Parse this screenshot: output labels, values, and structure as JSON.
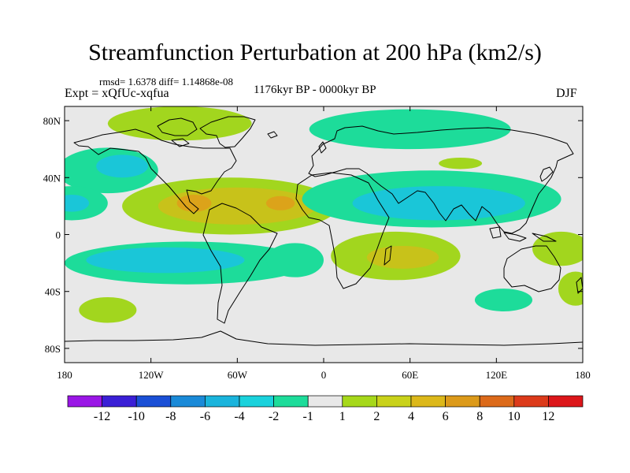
{
  "header": {
    "title": "Streamfunction Perturbation at 200 hPa (km2/s)",
    "stats": "rmsd= 1.6378 diff= 1.14868e-08",
    "experiment": "Expt = xQfUc-xqfua",
    "period": "1176kyr BP - 0000kyr BP",
    "season": "DJF"
  },
  "map": {
    "projection": "cylindrical equidistant",
    "lon_range": [
      -180,
      180
    ],
    "lat_range": [
      -90,
      90
    ],
    "lat_ticks": [
      {
        "value": 80,
        "label": "80N"
      },
      {
        "value": 40,
        "label": "40N"
      },
      {
        "value": 0,
        "label": "0"
      },
      {
        "value": -40,
        "label": "40S"
      },
      {
        "value": -80,
        "label": "80S"
      }
    ],
    "lon_ticks": [
      {
        "value": -180,
        "label": "180"
      },
      {
        "value": -120,
        "label": "120W"
      },
      {
        "value": -60,
        "label": "60W"
      },
      {
        "value": 0,
        "label": "0"
      },
      {
        "value": 60,
        "label": "60E"
      },
      {
        "value": 120,
        "label": "120E"
      },
      {
        "value": 180,
        "label": "180"
      }
    ],
    "field_colors": {
      "background": "#e8e8e8",
      "neg1": "#1ddc9a",
      "neg2": "#1ac6d8",
      "pos1": "#a2d61e",
      "pos2": "#c8c21a",
      "pos3": "#dca31a"
    },
    "anomalies": [
      {
        "name": "greenland-positive",
        "lon": -100,
        "lat": 78,
        "rlon": 50,
        "rlat": 12,
        "level": "pos1"
      },
      {
        "name": "arctic-negative",
        "lon": 60,
        "lat": 74,
        "rlon": 70,
        "rlat": 14,
        "level": "neg1"
      },
      {
        "name": "north-pacific-negative",
        "lon": -150,
        "lat": 45,
        "rlon": 35,
        "rlat": 16,
        "level": "neg1"
      },
      {
        "name": "north-pacific-negative-core",
        "lon": -140,
        "lat": 48,
        "rlon": 18,
        "rlat": 8,
        "level": "neg2"
      },
      {
        "name": "atlantic-positive",
        "lon": -65,
        "lat": 20,
        "rlon": 75,
        "rlat": 20,
        "level": "pos1"
      },
      {
        "name": "atlantic-positive-inner",
        "lon": -60,
        "lat": 20,
        "rlon": 55,
        "rlat": 13,
        "level": "pos2"
      },
      {
        "name": "atlantic-positive-core-west",
        "lon": -90,
        "lat": 22,
        "rlon": 12,
        "rlat": 6,
        "level": "pos3"
      },
      {
        "name": "atlantic-positive-core-east",
        "lon": -30,
        "lat": 22,
        "rlon": 10,
        "rlat": 5,
        "level": "pos3"
      },
      {
        "name": "asian-negative",
        "lon": 75,
        "lat": 25,
        "rlon": 90,
        "rlat": 20,
        "level": "neg1"
      },
      {
        "name": "asian-negative-core",
        "lon": 80,
        "lat": 22,
        "rlon": 60,
        "rlat": 12,
        "level": "neg2"
      },
      {
        "name": "hawaii-negative",
        "lon": -175,
        "lat": 22,
        "rlon": 25,
        "rlat": 12,
        "level": "neg1"
      },
      {
        "name": "hawaii-negative-core",
        "lon": -175,
        "lat": 22,
        "rlon": 12,
        "rlat": 6,
        "level": "neg2"
      },
      {
        "name": "central-asia-positive",
        "lon": 95,
        "lat": 50,
        "rlon": 15,
        "rlat": 4,
        "level": "pos1"
      },
      {
        "name": "south-pacific-negative",
        "lon": -95,
        "lat": -20,
        "rlon": 85,
        "rlat": 15,
        "level": "neg1"
      },
      {
        "name": "south-pacific-negative-core",
        "lon": -110,
        "lat": -18,
        "rlon": 55,
        "rlat": 9,
        "level": "neg2"
      },
      {
        "name": "south-atlantic-negative",
        "lon": -20,
        "lat": -18,
        "rlon": 20,
        "rlat": 12,
        "level": "neg1"
      },
      {
        "name": "indian-ocean-positive",
        "lon": 50,
        "lat": -15,
        "rlon": 45,
        "rlat": 17,
        "level": "pos1"
      },
      {
        "name": "indian-ocean-positive-core",
        "lon": 55,
        "lat": -16,
        "rlon": 25,
        "rlat": 8,
        "level": "pos2"
      },
      {
        "name": "australia-positive",
        "lon": 165,
        "lat": -10,
        "rlon": 20,
        "rlat": 12,
        "level": "pos1"
      },
      {
        "name": "south-pacific-positive",
        "lon": -150,
        "lat": -53,
        "rlon": 20,
        "rlat": 9,
        "level": "pos1"
      },
      {
        "name": "southern-ocean-negative",
        "lon": 125,
        "lat": -46,
        "rlon": 20,
        "rlat": 8,
        "level": "neg1"
      },
      {
        "name": "southern-ocean-positive",
        "lon": 175,
        "lat": -38,
        "rlon": 12,
        "rlat": 12,
        "level": "pos1"
      }
    ]
  },
  "colorbar": {
    "colors": [
      "#9a16e6",
      "#3a1fd6",
      "#1a4fd6",
      "#1a8ad8",
      "#1ab4dc",
      "#1ad2dc",
      "#1ddc9a",
      "#e8e8e8",
      "#a6d81a",
      "#c9d21a",
      "#dcb81a",
      "#dc9a1a",
      "#dc6a1a",
      "#dc3a1a",
      "#dc161a"
    ],
    "labels": [
      "-12",
      "-10",
      "-8",
      "-6",
      "-4",
      "-2",
      "-1",
      "1",
      "2",
      "4",
      "6",
      "8",
      "10",
      "12"
    ]
  }
}
